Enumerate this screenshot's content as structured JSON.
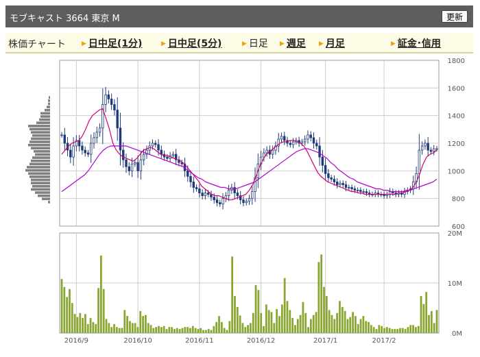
{
  "header": {
    "title": "モブキャスト  3664  東京 M",
    "refresh_label": "更新"
  },
  "nav": {
    "chart_label": "株価チャート",
    "items": [
      {
        "label": "日中足(1分)",
        "current": false
      },
      {
        "label": "日中足(5分)",
        "current": false
      },
      {
        "label": "日足",
        "current": true
      },
      {
        "label": "週足",
        "current": false
      },
      {
        "label": "月足",
        "current": false
      },
      {
        "label": "証金･信用",
        "current": false
      }
    ]
  },
  "colors": {
    "candle": "#1f3a78",
    "ma_short": "#d0006e",
    "ma_long": "#b000d0",
    "volume": "#8aa632",
    "volume_profile": "#808080",
    "grid": "#cccccc",
    "header_bg": "#5e5e5e",
    "nav_bg": "#fdfbe6",
    "nav_arrow": "#f0a000"
  },
  "chart_data": [
    {
      "type": "candlestick",
      "y_ticks": [
        "1800",
        "1600",
        "1400",
        "1200",
        "1000",
        "800",
        "600"
      ],
      "ylim": [
        600,
        1800
      ],
      "x_ticks": [
        "2016/9",
        "2016/10",
        "2016/11",
        "2016/12",
        "2017/1",
        "2017/2"
      ],
      "x_tick_index": [
        5,
        26,
        47,
        68,
        90,
        110
      ],
      "grid": true,
      "close": [
        1260,
        1200,
        1150,
        1100,
        1180,
        1220,
        1180,
        1150,
        1130,
        1120,
        1200,
        1240,
        1280,
        1310,
        1480,
        1550,
        1520,
        1480,
        1440,
        1310,
        1150,
        1080,
        1030,
        1000,
        1050,
        1060,
        1000,
        1080,
        1120,
        1150,
        1180,
        1200,
        1190,
        1150,
        1120,
        1100,
        1090,
        1110,
        1120,
        1080,
        1060,
        1050,
        1000,
        960,
        920,
        880,
        870,
        840,
        820,
        840,
        830,
        810,
        790,
        770,
        760,
        800,
        820,
        860,
        880,
        840,
        820,
        790,
        770,
        780,
        800,
        850,
        950,
        1050,
        1100,
        1130,
        1150,
        1120,
        1150,
        1180,
        1230,
        1250,
        1220,
        1200,
        1190,
        1210,
        1220,
        1200,
        1210,
        1230,
        1260,
        1240,
        1200,
        1180,
        1100,
        1040,
        980,
        950,
        940,
        920,
        900,
        910,
        900,
        880,
        880,
        870,
        860,
        860,
        850,
        850,
        840,
        830,
        830,
        840,
        830,
        830,
        820,
        830,
        850,
        840,
        830,
        840,
        830,
        850,
        860,
        870,
        920,
        980,
        1150,
        1180,
        1200,
        1150,
        1140,
        1160,
        1160
      ],
      "sma_short": [
        1120,
        1150,
        1180,
        1200,
        1210,
        1220,
        1250,
        1300,
        1360,
        1400,
        1420,
        1440,
        1450,
        1380,
        1300,
        1200,
        1150,
        1120,
        1100,
        1090,
        1080,
        1070,
        1090,
        1120,
        1150,
        1160,
        1170,
        1160,
        1140,
        1120,
        1110,
        1110,
        1100,
        1090,
        1080,
        1070,
        1050,
        1020,
        990,
        960,
        930,
        890,
        870,
        850,
        830,
        820,
        820,
        810,
        800,
        790,
        790,
        800,
        810,
        820,
        830,
        860,
        900,
        960,
        1030,
        1080,
        1120,
        1140,
        1160,
        1180,
        1200,
        1210,
        1210,
        1220,
        1220,
        1210,
        1200,
        1180,
        1140,
        1090,
        1040,
        990,
        960,
        940,
        920,
        910,
        900,
        890,
        880,
        870,
        860,
        850,
        850,
        840,
        840,
        830,
        830,
        830,
        830,
        830,
        830,
        830,
        830,
        830,
        830,
        840,
        840,
        850,
        860,
        880,
        920,
        980,
        1050,
        1100,
        1120,
        1130,
        1150
      ],
      "sma_long": [
        850,
        870,
        890,
        910,
        930,
        950,
        970,
        1000,
        1040,
        1080,
        1120,
        1150,
        1170,
        1180,
        1180,
        1180,
        1180,
        1180,
        1170,
        1160,
        1150,
        1140,
        1130,
        1120,
        1110,
        1100,
        1090,
        1080,
        1070,
        1060,
        1050,
        1040,
        1030,
        1010,
        990,
        970,
        950,
        940,
        920,
        910,
        900,
        890,
        880,
        880,
        870,
        870,
        870,
        880,
        890,
        900,
        910,
        920,
        940,
        960,
        980,
        1000,
        1020,
        1040,
        1060,
        1080,
        1100,
        1120,
        1140,
        1150,
        1160,
        1160,
        1150,
        1140,
        1130,
        1110,
        1090,
        1060,
        1040,
        1010,
        990,
        970,
        950,
        940,
        920,
        910,
        900,
        890,
        880,
        870,
        870,
        860,
        860,
        850,
        850,
        850,
        850,
        860,
        860,
        870,
        880,
        890,
        900,
        910,
        920,
        940
      ],
      "volume_profile": [
        2,
        3,
        3,
        5,
        8,
        14,
        14,
        16,
        20,
        32,
        30,
        28,
        26,
        28,
        30,
        32,
        28,
        24,
        22,
        26,
        28,
        30,
        34,
        36,
        32,
        30,
        28,
        28,
        26,
        28,
        22,
        18,
        12,
        3
      ]
    },
    {
      "type": "bar",
      "title": "",
      "y_ticks": [
        "20M",
        "10M",
        "0M"
      ],
      "ylim": [
        0,
        20
      ],
      "values": [
        10.8,
        9.2,
        7.2,
        8.8,
        6,
        3.8,
        3.2,
        4,
        3,
        3.8,
        1.8,
        3,
        2.2,
        1.8,
        9,
        15.5,
        8.8,
        2.8,
        2,
        1.2,
        1.8,
        1.2,
        1,
        1,
        4.6,
        3.4,
        2.4,
        2,
        2,
        1.2,
        4.4,
        3.4,
        3.6,
        2,
        1.6,
        1,
        1.2,
        1.4,
        1.2,
        1.4,
        0.8,
        1.2,
        1.2,
        0.8,
        1,
        0.8,
        1,
        1.2,
        1.2,
        1,
        1.4,
        1,
        0.8,
        1,
        0.6,
        0.6,
        0.8,
        0.6,
        1.4,
        2.2,
        3.4,
        2.2,
        1,
        0.6,
        2.4,
        15.3,
        7.4,
        5.2,
        3.5,
        2,
        1.2,
        1.6,
        2,
        4,
        9.6,
        8.6,
        4,
        1.4,
        5.7,
        4.6,
        4.2,
        2,
        4.8,
        3.4,
        5.7,
        11,
        6.4,
        4.6,
        3,
        1.6,
        2.8,
        3.6,
        6.2,
        4,
        1.2,
        2.8,
        3.6,
        4.2,
        14.2,
        15.7,
        9.2,
        7.4,
        4.6,
        3.6,
        2.8,
        4,
        6.4,
        5.2,
        4.4,
        2.8,
        3.2,
        4.2,
        3.4,
        1.8,
        2.8,
        3.4,
        2.4,
        2.2,
        1.6,
        1.2,
        0.8,
        1.6,
        1.4,
        1,
        1.2,
        1,
        0.8,
        0.8,
        0.8,
        1,
        1,
        0.8,
        1.2,
        1.6,
        1.6,
        1.2,
        1.4,
        7.4,
        5.8,
        8.2,
        3.6,
        4.4,
        2,
        4.6
      ]
    }
  ]
}
